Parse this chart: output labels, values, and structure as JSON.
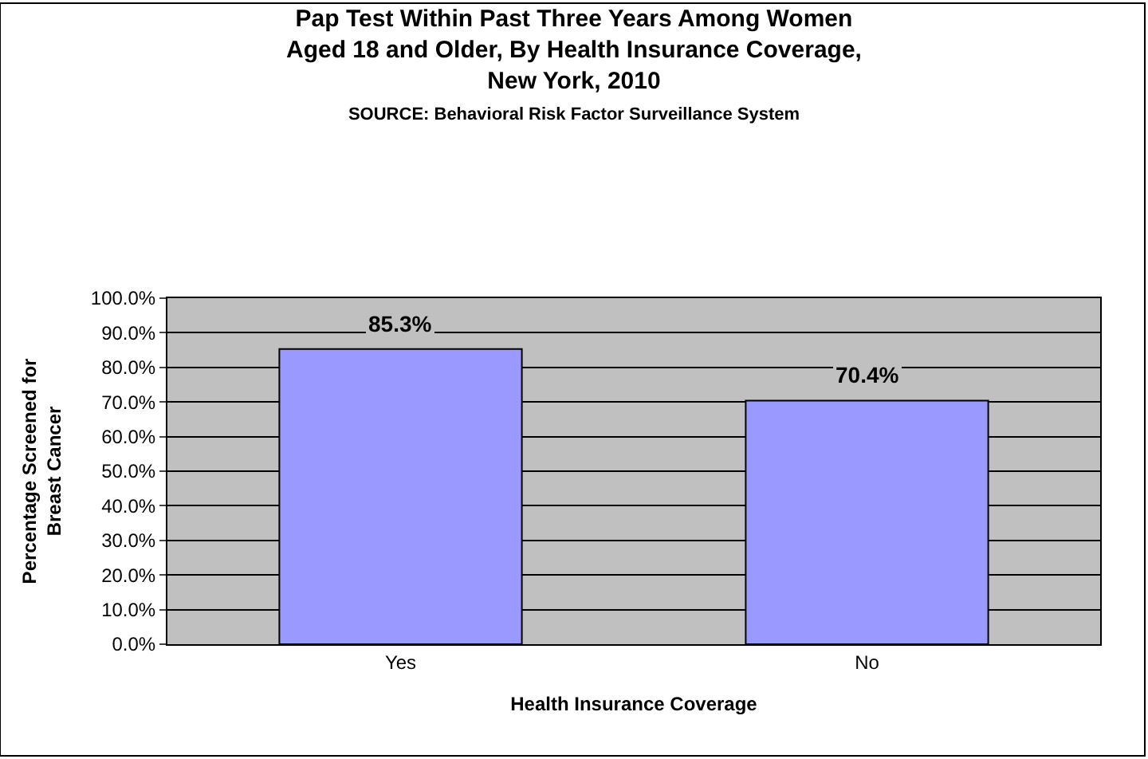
{
  "chart_data": {
    "type": "bar",
    "title": "Pap Test Within Past Three Years Among Women\nAged 18 and Older, By Health Insurance Coverage,\nNew York, 2010",
    "subtitle": "SOURCE: Behavioral Risk Factor Surveillance System",
    "xlabel": "Health Insurance Coverage",
    "ylabel": "Percentage Screened for\nBreast Cancer",
    "categories": [
      "Yes",
      "No"
    ],
    "values": [
      85.3,
      70.4
    ],
    "value_labels": [
      "85.3%",
      "70.4%"
    ],
    "color": "#9999ff",
    "ylim": [
      0,
      100
    ],
    "yticks": [
      {
        "value": 0,
        "label": "0.0%"
      },
      {
        "value": 10,
        "label": "10.0%"
      },
      {
        "value": 20,
        "label": "20.0%"
      },
      {
        "value": 30,
        "label": "30.0%"
      },
      {
        "value": 40,
        "label": "40.0%"
      },
      {
        "value": 50,
        "label": "50.0%"
      },
      {
        "value": 60,
        "label": "60.0%"
      },
      {
        "value": 70,
        "label": "70.0%"
      },
      {
        "value": 80,
        "label": "80.0%"
      },
      {
        "value": 90,
        "label": "90.0%"
      },
      {
        "value": 100,
        "label": "100.0%"
      }
    ],
    "grid": "y",
    "legend": false
  }
}
